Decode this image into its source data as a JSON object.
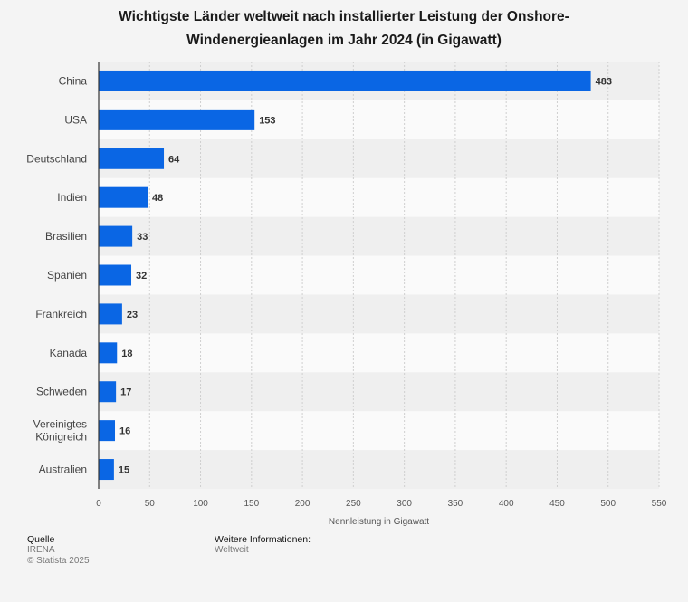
{
  "chart_data": {
    "type": "bar",
    "orientation": "horizontal",
    "title": "Wichtigste Länder weltweit nach installierter Leistung der Onshore-Windenergieanlagen im Jahr 2024 (in Gigawatt)",
    "title_line1": "Wichtigste Länder weltweit nach installierter Leistung der Onshore-",
    "title_line2": "Windenergieanlagen im Jahr 2024 (in Gigawatt)",
    "categories": [
      "China",
      "USA",
      "Deutschland",
      "Indien",
      "Brasilien",
      "Spanien",
      "Frankreich",
      "Kanada",
      "Schweden",
      "Vereinigtes Königreich",
      "Australien"
    ],
    "values": [
      483,
      153,
      64,
      48,
      33,
      32,
      23,
      18,
      17,
      16,
      15
    ],
    "xlabel": "Nennleistung in Gigawatt",
    "ylabel": "",
    "xlim": [
      0,
      550
    ],
    "xticks": [
      0,
      50,
      100,
      150,
      200,
      250,
      300,
      350,
      400,
      450,
      500,
      550
    ],
    "grid": true,
    "bar_color": "#0a66e4",
    "stripe_color": "#efefef"
  },
  "footer": {
    "source_heading": "Quelle",
    "source": "IRENA",
    "copyright": "© Statista 2025",
    "info_heading": "Weitere Informationen:",
    "info": "Weltweit"
  }
}
